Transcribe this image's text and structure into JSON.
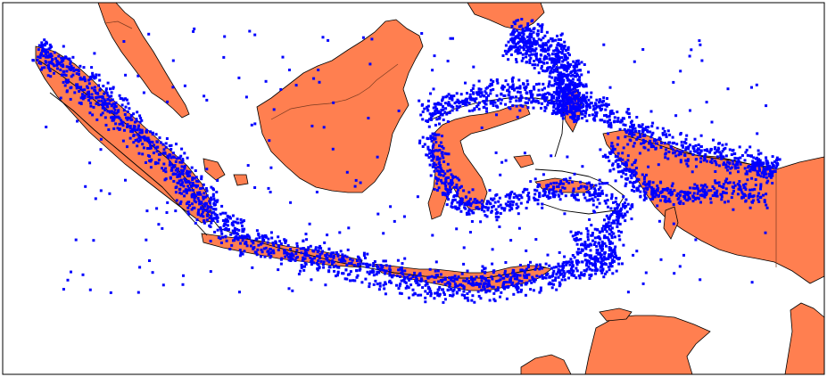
{
  "map": {
    "colors": {
      "land": "#FF7F50",
      "coastline": "#000000",
      "border": "#7a3a20",
      "ocean": "#ffffff",
      "points": "#0000FF",
      "frame": "#000000"
    },
    "legend": [],
    "title": ""
  }
}
